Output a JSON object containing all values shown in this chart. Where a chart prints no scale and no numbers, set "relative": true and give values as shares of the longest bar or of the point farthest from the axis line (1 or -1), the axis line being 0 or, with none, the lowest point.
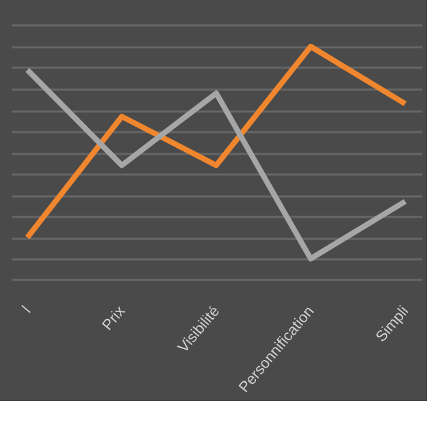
{
  "chart_data": {
    "type": "line",
    "relative": true,
    "grid": "y",
    "marker": "none",
    "line_style": "solid",
    "categories": [
      "l",
      "Prix",
      "Visibilité",
      "Personnification",
      "Simpli"
    ],
    "series": [
      {
        "color": "#f0862e",
        "values": [
          0.1,
          0.67,
          0.44,
          1.0,
          0.73
        ]
      },
      {
        "color": "#a6a6a6",
        "values": [
          0.89,
          0.44,
          0.78,
          0.0,
          0.27
        ]
      }
    ]
  }
}
